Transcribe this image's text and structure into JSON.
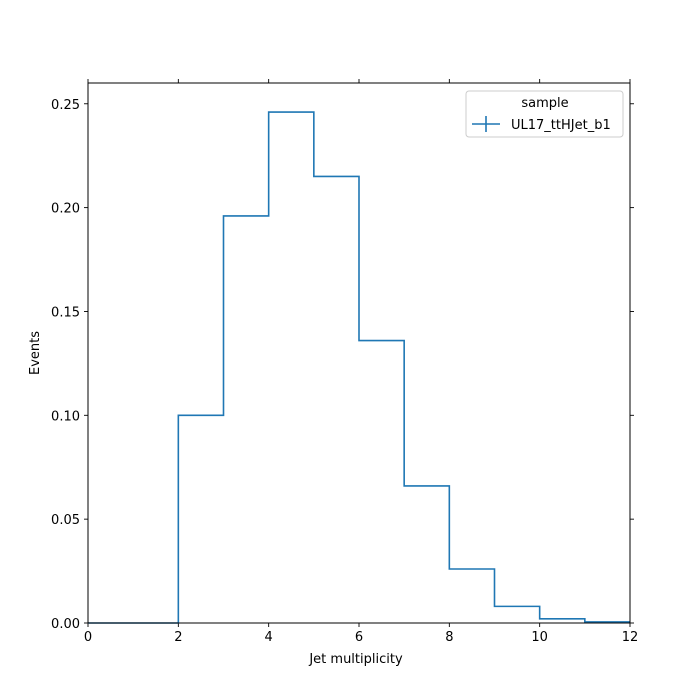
{
  "chart_data": {
    "type": "step-histogram",
    "xlabel": "Jet multiplicity",
    "ylabel": "Events",
    "xlim": [
      0,
      12
    ],
    "ylim": [
      0,
      0.26
    ],
    "bin_edges": [
      0,
      1,
      2,
      3,
      4,
      5,
      6,
      7,
      8,
      9,
      10,
      11,
      12
    ],
    "x_ticks": [
      0,
      2,
      4,
      6,
      8,
      10,
      12
    ],
    "y_ticks": [
      0.0,
      0.05,
      0.1,
      0.15,
      0.2,
      0.25
    ],
    "x_tick_labels": [
      "0",
      "2",
      "4",
      "6",
      "8",
      "10",
      "12"
    ],
    "y_tick_labels": [
      "0.00",
      "0.05",
      "0.10",
      "0.15",
      "0.20",
      "0.25"
    ],
    "grid": false,
    "legend": {
      "title": "sample",
      "placement": "top-right"
    },
    "series": [
      {
        "name": "UL17_ttHJet_b1",
        "color": "#1f77b4",
        "values": [
          0.0,
          0.0,
          0.1,
          0.196,
          0.246,
          0.215,
          0.136,
          0.066,
          0.026,
          0.008,
          0.002,
          0.0005
        ]
      }
    ]
  }
}
